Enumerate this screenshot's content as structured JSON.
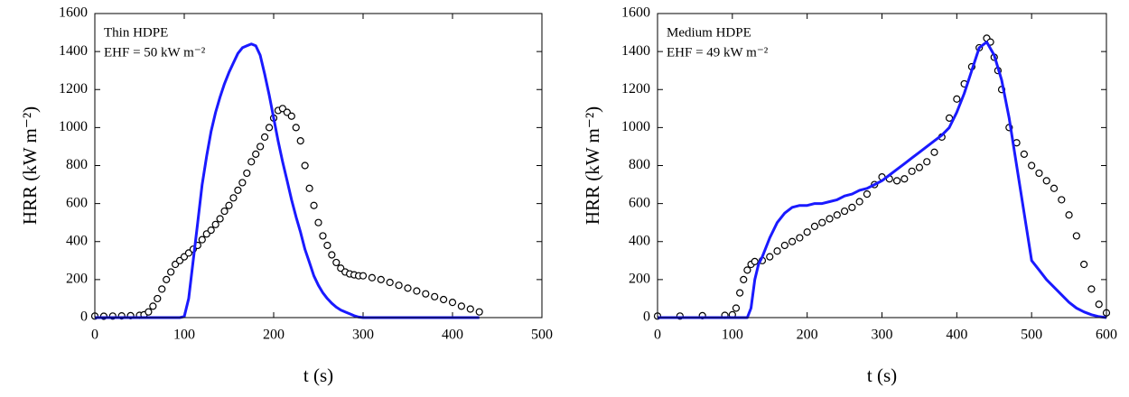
{
  "chart_data": [
    {
      "type": "line",
      "x_label": "t (s)",
      "y_label": "HRR (kW m⁻²)",
      "annotations": [
        "Thin HDPE",
        "EHF = 50 kW m⁻²"
      ],
      "xlim": [
        0,
        500
      ],
      "xticks": [
        0,
        100,
        200,
        300,
        400,
        500
      ],
      "ylim": [
        0,
        1600
      ],
      "yticks": [
        0,
        200,
        400,
        600,
        800,
        1000,
        1200,
        1400,
        1600
      ],
      "series": [
        {
          "type": "scatter",
          "color": "#000000",
          "x": [
            0,
            10,
            20,
            30,
            40,
            50,
            55,
            60,
            65,
            70,
            75,
            80,
            85,
            90,
            95,
            100,
            105,
            110,
            115,
            120,
            125,
            130,
            135,
            140,
            145,
            150,
            155,
            160,
            165,
            170,
            175,
            180,
            185,
            190,
            195,
            200,
            205,
            210,
            215,
            220,
            225,
            230,
            235,
            240,
            245,
            250,
            255,
            260,
            265,
            270,
            275,
            280,
            285,
            290,
            295,
            300,
            310,
            320,
            330,
            340,
            350,
            360,
            370,
            380,
            390,
            400,
            410,
            420,
            430
          ],
          "values": [
            8,
            7,
            8,
            9,
            10,
            12,
            15,
            30,
            60,
            100,
            150,
            200,
            240,
            280,
            300,
            320,
            340,
            360,
            380,
            410,
            440,
            460,
            490,
            520,
            560,
            590,
            630,
            670,
            710,
            760,
            820,
            860,
            900,
            950,
            1000,
            1050,
            1090,
            1100,
            1080,
            1060,
            1000,
            930,
            800,
            680,
            590,
            500,
            430,
            380,
            330,
            290,
            260,
            240,
            230,
            225,
            220,
            220,
            210,
            200,
            185,
            170,
            155,
            140,
            125,
            110,
            95,
            80,
            60,
            45,
            30
          ]
        },
        {
          "type": "line",
          "color": "#1a1aff",
          "x": [
            0,
            95,
            100,
            105,
            110,
            115,
            120,
            125,
            130,
            135,
            140,
            145,
            150,
            155,
            160,
            165,
            170,
            175,
            180,
            185,
            190,
            195,
            200,
            205,
            210,
            215,
            220,
            225,
            230,
            235,
            240,
            245,
            250,
            255,
            260,
            265,
            270,
            275,
            280,
            285,
            290,
            295,
            300,
            430
          ],
          "values": [
            0,
            0,
            5,
            100,
            300,
            500,
            700,
            850,
            980,
            1080,
            1160,
            1230,
            1290,
            1340,
            1390,
            1420,
            1430,
            1440,
            1430,
            1380,
            1280,
            1170,
            1050,
            930,
            820,
            720,
            620,
            530,
            450,
            360,
            290,
            220,
            170,
            130,
            100,
            75,
            55,
            40,
            30,
            20,
            10,
            3,
            0,
            0
          ]
        }
      ]
    },
    {
      "type": "line",
      "x_label": "t (s)",
      "y_label": "HRR (kW m⁻²)",
      "annotations": [
        "Medium HDPE",
        "EHF = 49 kW m⁻²"
      ],
      "xlim": [
        0,
        600
      ],
      "xticks": [
        0,
        100,
        200,
        300,
        400,
        500,
        600
      ],
      "ylim": [
        0,
        1600
      ],
      "yticks": [
        0,
        200,
        400,
        600,
        800,
        1000,
        1200,
        1400,
        1600
      ],
      "series": [
        {
          "type": "scatter",
          "color": "#000000",
          "x": [
            0,
            30,
            60,
            90,
            100,
            105,
            110,
            115,
            120,
            125,
            130,
            140,
            150,
            160,
            170,
            180,
            190,
            200,
            210,
            220,
            230,
            240,
            250,
            260,
            270,
            280,
            290,
            300,
            310,
            320,
            330,
            340,
            350,
            360,
            370,
            380,
            390,
            400,
            410,
            420,
            430,
            440,
            445,
            450,
            455,
            460,
            470,
            480,
            490,
            500,
            510,
            520,
            530,
            540,
            550,
            560,
            570,
            580,
            590,
            600
          ],
          "values": [
            8,
            8,
            10,
            12,
            15,
            50,
            130,
            200,
            250,
            280,
            295,
            300,
            320,
            350,
            380,
            400,
            420,
            450,
            480,
            500,
            520,
            540,
            560,
            580,
            610,
            650,
            700,
            740,
            730,
            720,
            730,
            770,
            790,
            820,
            870,
            950,
            1050,
            1150,
            1230,
            1320,
            1420,
            1470,
            1450,
            1370,
            1300,
            1200,
            1000,
            920,
            860,
            800,
            760,
            720,
            680,
            620,
            540,
            430,
            280,
            150,
            70,
            25
          ]
        },
        {
          "type": "line",
          "color": "#1a1aff",
          "x": [
            0,
            120,
            125,
            130,
            135,
            140,
            150,
            160,
            170,
            180,
            190,
            200,
            210,
            220,
            230,
            240,
            250,
            260,
            270,
            280,
            290,
            300,
            310,
            320,
            330,
            340,
            350,
            360,
            370,
            380,
            390,
            400,
            410,
            420,
            430,
            440,
            450,
            460,
            470,
            480,
            490,
            500,
            510,
            520,
            530,
            540,
            550,
            560,
            570,
            580,
            590,
            600
          ],
          "values": [
            0,
            0,
            50,
            200,
            280,
            320,
            420,
            500,
            550,
            580,
            590,
            590,
            600,
            600,
            610,
            620,
            640,
            650,
            670,
            680,
            700,
            720,
            750,
            780,
            810,
            840,
            870,
            900,
            930,
            960,
            1000,
            1080,
            1180,
            1300,
            1420,
            1450,
            1380,
            1250,
            1050,
            800,
            550,
            300,
            250,
            200,
            160,
            120,
            80,
            50,
            30,
            15,
            5,
            0
          ]
        }
      ]
    }
  ]
}
